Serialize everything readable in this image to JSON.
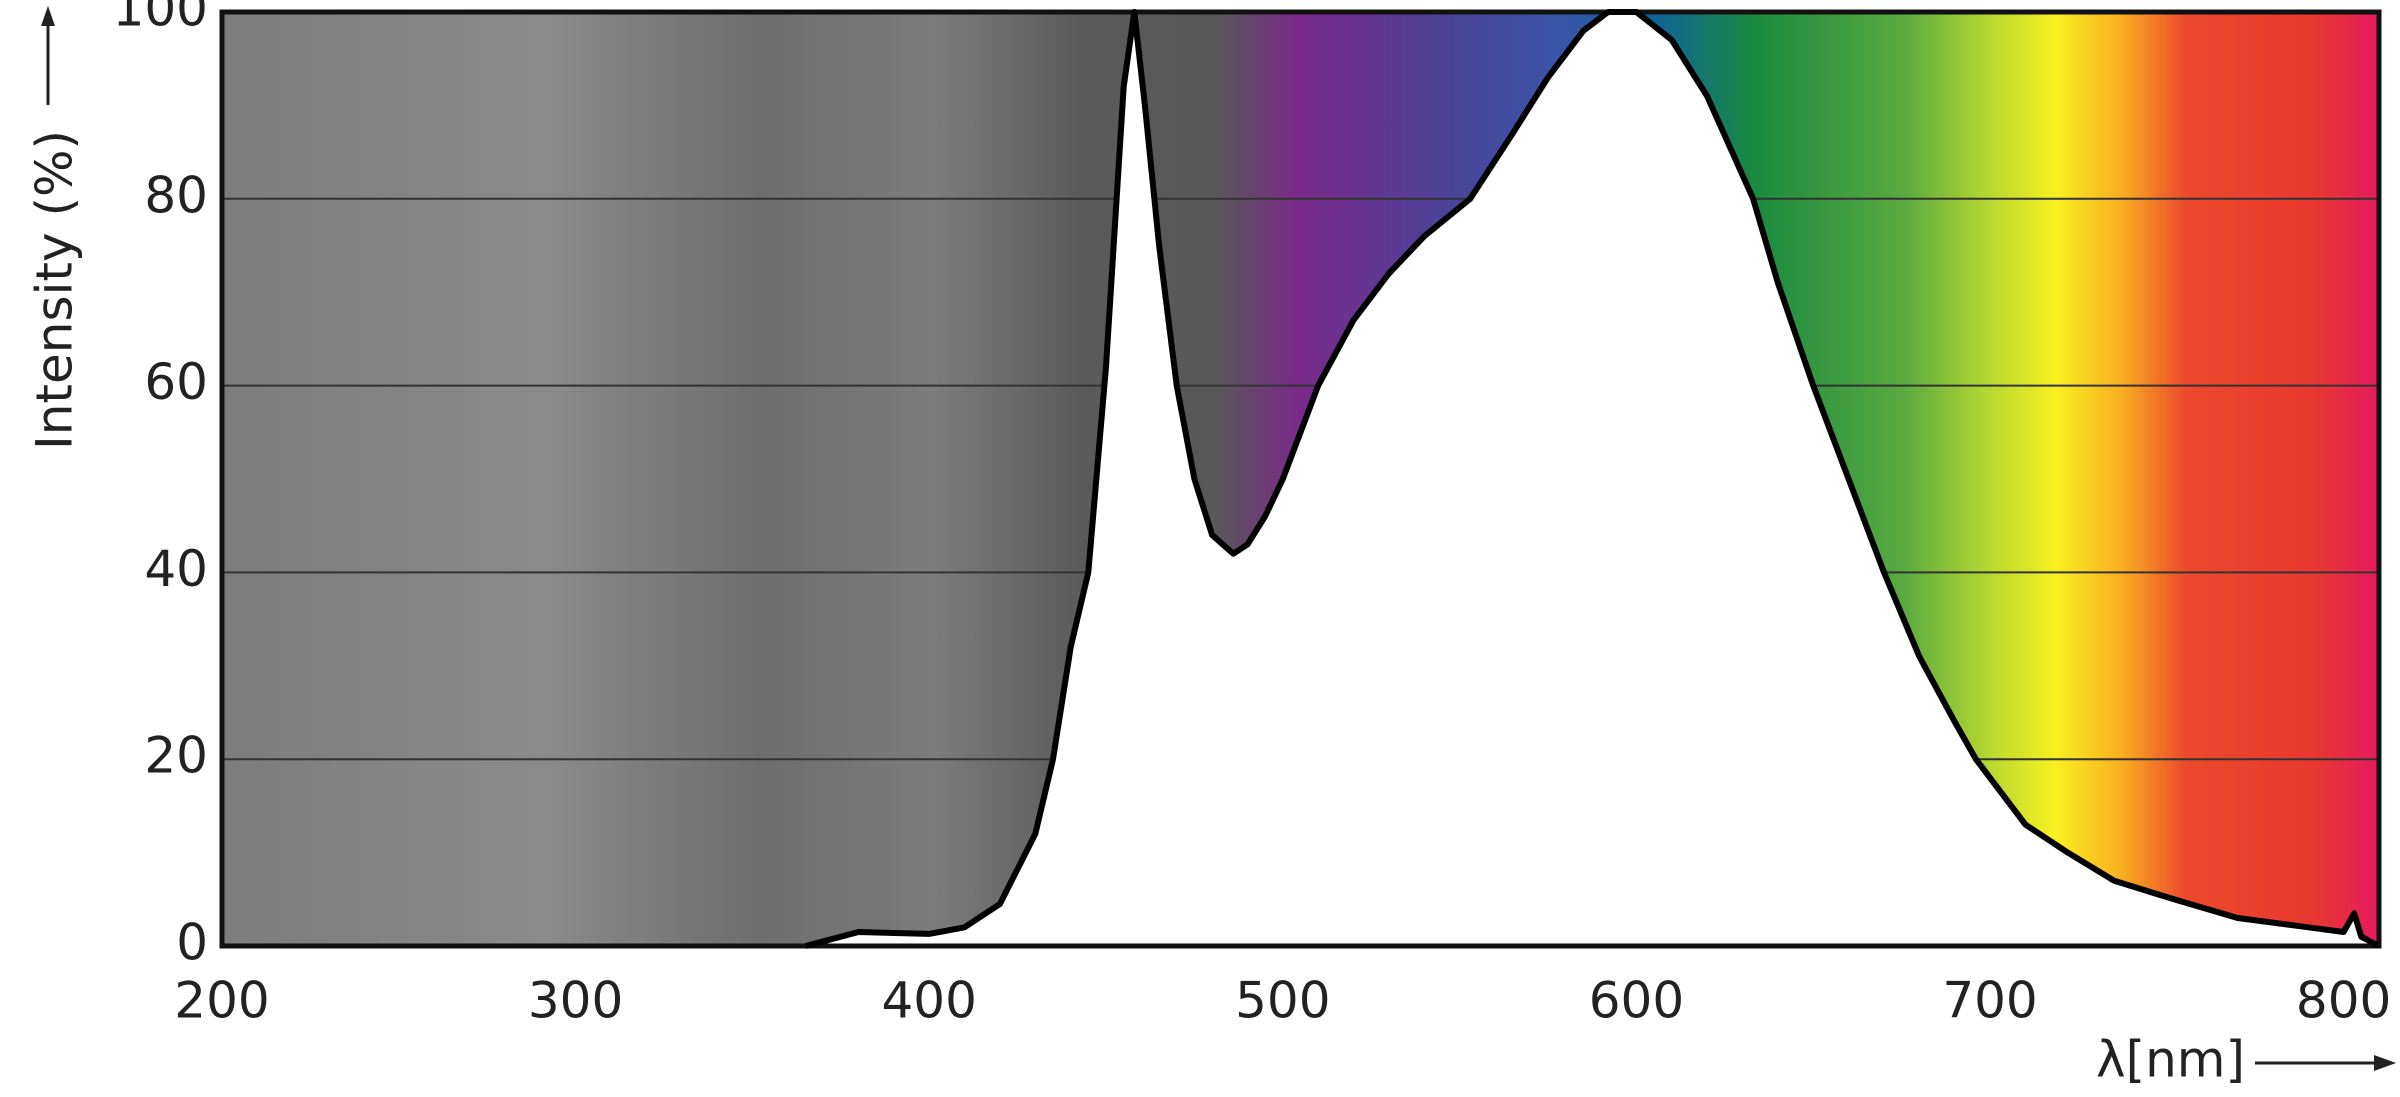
{
  "chart_data": {
    "type": "line",
    "y_label": "Intensity (%)",
    "x_label": "λ[nm]",
    "x": [
      365,
      375,
      380,
      400,
      410,
      420,
      430,
      435,
      440,
      445,
      450,
      455,
      458,
      461,
      465,
      470,
      475,
      480,
      486,
      490,
      495,
      500,
      510,
      520,
      530,
      540,
      553,
      565,
      575,
      585,
      592,
      600,
      610,
      620,
      633,
      640,
      650,
      660,
      670,
      680,
      690,
      696,
      710,
      722,
      735,
      752,
      770,
      790,
      800,
      803,
      805,
      810
    ],
    "values": [
      0,
      1,
      1.5,
      1.3,
      2,
      4.5,
      12,
      20,
      32,
      40,
      62,
      92,
      100,
      90,
      75,
      60,
      50,
      44,
      42,
      43,
      46,
      50,
      60,
      67,
      72,
      76,
      80,
      87,
      93,
      98,
      100,
      100,
      97,
      91,
      80,
      71,
      60,
      50,
      40,
      31,
      24,
      20,
      13,
      10,
      7,
      5,
      3,
      2,
      1.5,
      3.5,
      1,
      0
    ],
    "color": "#000000",
    "xlim": [
      200,
      810
    ],
    "xticks": [
      200,
      300,
      400,
      500,
      600,
      700,
      800
    ],
    "ylim": [
      0,
      100
    ],
    "yticks": [
      0,
      20,
      40,
      60,
      80,
      100
    ],
    "grid": true
  }
}
